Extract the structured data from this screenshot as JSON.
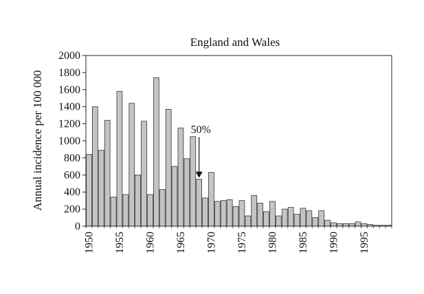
{
  "chart_data": {
    "type": "bar",
    "title": "England and Wales",
    "ylabel": "Annual incidence per 100 000",
    "xlabel": "",
    "ylim": [
      0,
      2000
    ],
    "y_ticks": [
      0,
      200,
      400,
      600,
      800,
      1000,
      1200,
      1400,
      1600,
      1800,
      2000
    ],
    "x_tick_labels": [
      "1950",
      "1955",
      "1960",
      "1965",
      "1970",
      "1975",
      "1980",
      "1985",
      "1990",
      "1995"
    ],
    "x_range": [
      1950,
      1999
    ],
    "categories": [
      1950,
      1951,
      1952,
      1953,
      1954,
      1955,
      1956,
      1957,
      1958,
      1959,
      1960,
      1961,
      1962,
      1963,
      1964,
      1965,
      1966,
      1967,
      1968,
      1969,
      1970,
      1971,
      1972,
      1973,
      1974,
      1975,
      1976,
      1977,
      1978,
      1979,
      1980,
      1981,
      1982,
      1983,
      1984,
      1985,
      1986,
      1987,
      1988,
      1989,
      1990,
      1991,
      1992,
      1993,
      1994,
      1995,
      1996,
      1997,
      1998,
      1999
    ],
    "values": [
      840,
      1400,
      890,
      1240,
      340,
      1580,
      370,
      1440,
      600,
      1230,
      370,
      1740,
      430,
      1370,
      700,
      1150,
      790,
      1050,
      550,
      330,
      630,
      290,
      300,
      310,
      230,
      300,
      120,
      360,
      270,
      170,
      290,
      120,
      200,
      220,
      140,
      210,
      180,
      100,
      180,
      70,
      40,
      30,
      30,
      30,
      50,
      30,
      20,
      10,
      10,
      10
    ],
    "grid": false,
    "bar_color": "#c4c4c4",
    "annotations": [
      {
        "text": "50%",
        "x": 1968,
        "y": 550,
        "arrow": "down"
      }
    ]
  }
}
